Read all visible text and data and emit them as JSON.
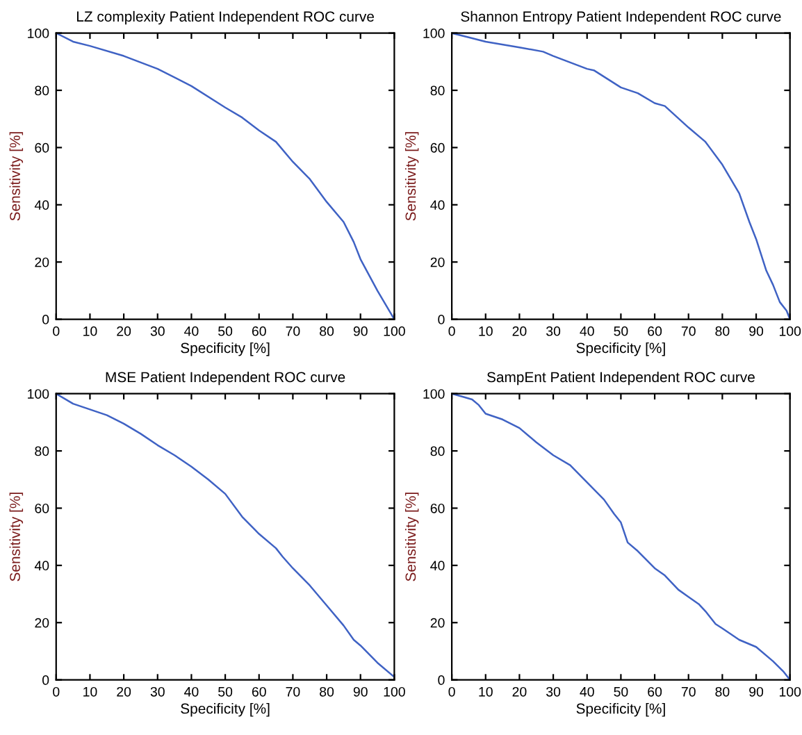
{
  "chart_data": [
    {
      "type": "line",
      "title": "LZ complexity Patient Independent ROC curve",
      "xlabel": "Specificity [%]",
      "ylabel": "Sensitivity [%]",
      "xlim": [
        0,
        100
      ],
      "ylim": [
        0,
        100
      ],
      "xticks": [
        0,
        10,
        20,
        30,
        40,
        50,
        60,
        70,
        80,
        90,
        100
      ],
      "yticks": [
        0,
        20,
        40,
        60,
        80,
        100
      ],
      "grid": false,
      "legend": false,
      "series": [
        {
          "color": "#3f62c4",
          "x": [
            0,
            5,
            10,
            20,
            30,
            40,
            50,
            55,
            60,
            65,
            70,
            75,
            80,
            85,
            88,
            90,
            95,
            100
          ],
          "values": [
            100,
            97,
            95.5,
            92,
            87.5,
            81.5,
            74,
            70.5,
            66,
            62,
            55,
            49,
            41,
            34,
            27,
            21,
            10,
            0
          ]
        }
      ]
    },
    {
      "type": "line",
      "title": "Shannon Entropy Patient Independent ROC curve",
      "xlabel": "Specificity [%]",
      "ylabel": "Sensitivity [%]",
      "xlim": [
        0,
        100
      ],
      "ylim": [
        0,
        100
      ],
      "xticks": [
        0,
        10,
        20,
        30,
        40,
        50,
        60,
        70,
        80,
        90,
        100
      ],
      "yticks": [
        0,
        20,
        40,
        60,
        80,
        100
      ],
      "grid": false,
      "legend": false,
      "series": [
        {
          "color": "#3f62c4",
          "x": [
            0,
            5,
            10,
            20,
            27,
            30,
            40,
            42,
            50,
            55,
            60,
            63,
            70,
            75,
            80,
            85,
            88,
            90,
            93,
            95,
            97,
            99,
            100
          ],
          "values": [
            100,
            98.5,
            97,
            95,
            93.5,
            92,
            87.5,
            87,
            81,
            79,
            75.5,
            74.5,
            67,
            62,
            54,
            44,
            34,
            28,
            17,
            12,
            6,
            3,
            0
          ]
        }
      ]
    },
    {
      "type": "line",
      "title": "MSE Patient Independent ROC curve",
      "xlabel": "Specificity [%]",
      "ylabel": "Sensitivity [%]",
      "xlim": [
        0,
        100
      ],
      "ylim": [
        0,
        100
      ],
      "xticks": [
        0,
        10,
        20,
        30,
        40,
        50,
        60,
        70,
        80,
        90,
        100
      ],
      "yticks": [
        0,
        20,
        40,
        60,
        80,
        100
      ],
      "grid": false,
      "legend": false,
      "series": [
        {
          "color": "#3f62c4",
          "x": [
            0,
            5,
            10,
            15,
            20,
            25,
            30,
            35,
            40,
            45,
            50,
            55,
            60,
            65,
            67,
            70,
            75,
            80,
            85,
            88,
            90,
            95,
            100
          ],
          "values": [
            100,
            96.5,
            94.5,
            92.5,
            89.5,
            86,
            82,
            78.5,
            74.5,
            70,
            65,
            57,
            51,
            46,
            43,
            39,
            33,
            26,
            19,
            14,
            12,
            6,
            1
          ]
        }
      ]
    },
    {
      "type": "line",
      "title": "SampEnt Patient Independent ROC curve",
      "xlabel": "Specificity [%]",
      "ylabel": "Sensitivity [%]",
      "xlim": [
        0,
        100
      ],
      "ylim": [
        0,
        100
      ],
      "xticks": [
        0,
        10,
        20,
        30,
        40,
        50,
        60,
        70,
        80,
        90,
        100
      ],
      "yticks": [
        0,
        20,
        40,
        60,
        80,
        100
      ],
      "grid": false,
      "legend": false,
      "series": [
        {
          "color": "#3f62c4",
          "x": [
            0,
            3,
            6,
            8,
            10,
            15,
            20,
            23,
            25,
            30,
            35,
            40,
            45,
            48,
            50,
            52,
            55,
            60,
            63,
            67,
            70,
            73,
            75,
            78,
            80,
            85,
            90,
            95,
            98,
            100
          ],
          "values": [
            100,
            99,
            98,
            96,
            93,
            91,
            88,
            85,
            83,
            78.5,
            75,
            69,
            63,
            58,
            55,
            48,
            45,
            39,
            36.5,
            31.5,
            29,
            26.5,
            24,
            19.5,
            18,
            14,
            11.5,
            6.5,
            3,
            0
          ]
        }
      ]
    }
  ]
}
